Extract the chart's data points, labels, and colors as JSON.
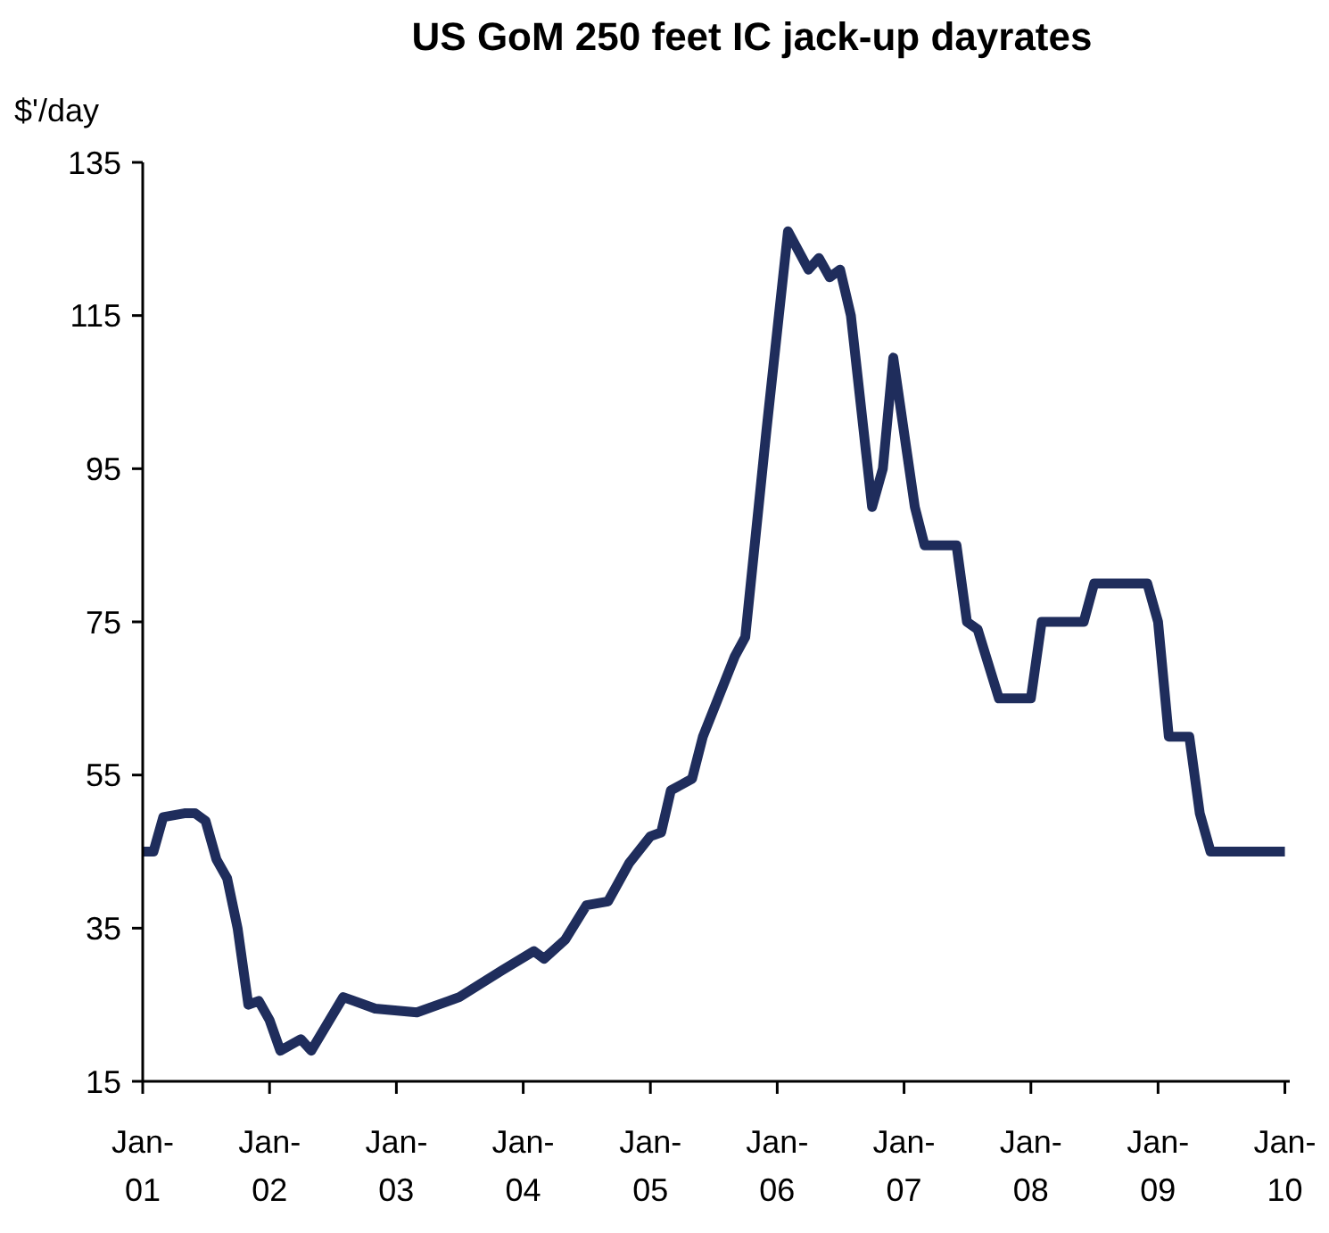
{
  "chart_data": {
    "type": "line",
    "title": "US GoM 250 feet IC jack-up dayrates",
    "ylabel": "$'/day",
    "x": [
      "2001-01",
      "2001-02",
      "2001-03",
      "2001-05",
      "2001-06",
      "2001-07",
      "2001-08",
      "2001-09",
      "2001-10",
      "2001-11",
      "2001-12",
      "2002-01",
      "2002-02",
      "2002-04",
      "2002-05",
      "2002-08",
      "2002-09",
      "2002-11",
      "2003-03",
      "2003-06",
      "2003-07",
      "2003-11",
      "2004-02",
      "2004-03",
      "2004-05",
      "2004-07",
      "2004-09",
      "2004-11",
      "2005-01",
      "2005-02",
      "2005-03",
      "2005-05",
      "2005-06",
      "2005-09",
      "2005-10",
      "2005-12",
      "2006-02",
      "2006-04",
      "2006-05",
      "2006-06",
      "2006-07",
      "2006-08",
      "2006-10",
      "2006-11",
      "2006-12",
      "2007-02",
      "2007-03",
      "2007-06",
      "2007-07",
      "2007-08",
      "2007-10",
      "2008-01",
      "2008-02",
      "2008-06",
      "2008-07",
      "2008-12",
      "2009-01",
      "2009-02",
      "2009-04",
      "2009-05",
      "2009-06",
      "2010-01"
    ],
    "series": [
      {
        "color": "#1f2d5c",
        "values": [
          45,
          45,
          49.5,
          50,
          50,
          49,
          44,
          41.5,
          35,
          25,
          25.5,
          23,
          19,
          20.5,
          19,
          26,
          25.5,
          24.5,
          24,
          25.5,
          26,
          29.5,
          32,
          31,
          33.5,
          38,
          38.5,
          43.5,
          47,
          47.5,
          53,
          54.5,
          60,
          70.5,
          73,
          100,
          126,
          121,
          122.5,
          120,
          121,
          115,
          90,
          95,
          109.5,
          90,
          85,
          85,
          75,
          74,
          65,
          65,
          75,
          75,
          80,
          80,
          75,
          60,
          60,
          50,
          45,
          45
        ]
      }
    ],
    "xlim": [
      "2001-01",
      "2010-01-15"
    ],
    "xticks": [
      {
        "value": "2001-01",
        "label": "Jan-01"
      },
      {
        "value": "2002-01",
        "label": "Jan-02"
      },
      {
        "value": "2003-01",
        "label": "Jan-03"
      },
      {
        "value": "2004-01",
        "label": "Jan-04"
      },
      {
        "value": "2005-01",
        "label": "Jan-05"
      },
      {
        "value": "2006-01",
        "label": "Jan-06"
      },
      {
        "value": "2007-01",
        "label": "Jan-07"
      },
      {
        "value": "2008-01",
        "label": "Jan-08"
      },
      {
        "value": "2009-01",
        "label": "Jan-09"
      },
      {
        "value": "2010-01",
        "label": "Jan-10"
      }
    ],
    "ylim": [
      15,
      135
    ],
    "yticks": [
      15,
      35,
      55,
      75,
      95,
      115,
      135
    ],
    "grid": false,
    "marker": "none",
    "line_style": "solid"
  }
}
